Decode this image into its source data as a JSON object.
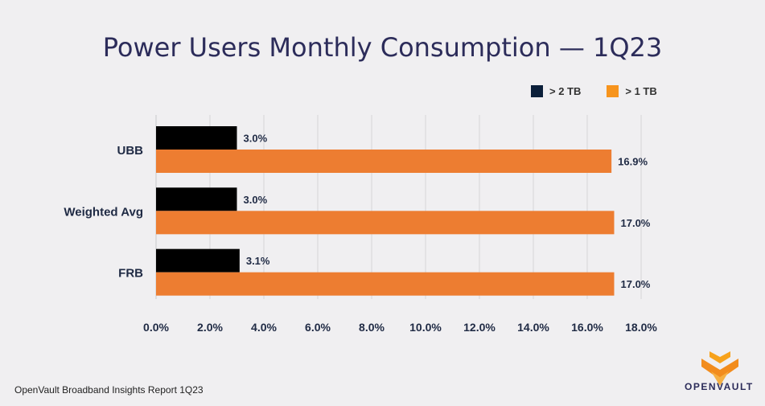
{
  "chart_data": {
    "type": "bar",
    "orientation": "horizontal",
    "title": "Power Users Monthly Consumption — 1Q23",
    "categories": [
      "UBB",
      "Weighted Avg",
      "FRB"
    ],
    "series": [
      {
        "name": "> 2 TB",
        "color": "#000000",
        "values": [
          3.0,
          3.0,
          3.1
        ],
        "labels": [
          "3.0%",
          "3.0%",
          "3.1%"
        ]
      },
      {
        "name": "> 1 TB",
        "color": "#ed7d31",
        "values": [
          16.9,
          17.0,
          17.0
        ],
        "labels": [
          "16.9%",
          "17.0%",
          "17.0%"
        ]
      }
    ],
    "xlim": [
      0,
      18
    ],
    "xticks": [
      "0.0%",
      "2.0%",
      "4.0%",
      "6.0%",
      "8.0%",
      "10.0%",
      "12.0%",
      "14.0%",
      "16.0%",
      "18.0%"
    ],
    "grid": true,
    "legend_position": "top-right"
  },
  "legend": {
    "items": [
      {
        "label": "> 2 TB",
        "color": "#0b1f3a"
      },
      {
        "label": "> 1 TB",
        "color": "#f7941d"
      }
    ]
  },
  "footer": {
    "source": "OpenVault Broadband Insights Report 1Q23",
    "logo_text": "OpenVault"
  }
}
